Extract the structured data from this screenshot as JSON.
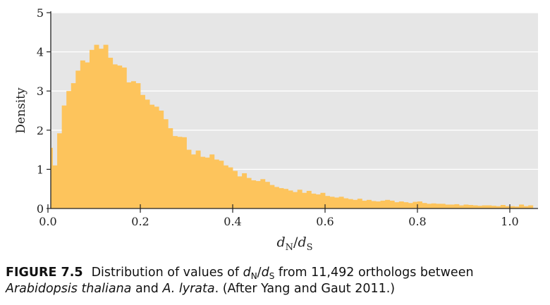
{
  "chart_data": {
    "type": "bar",
    "title": "",
    "xlabel": "dN/dS",
    "xlabel_parts": {
      "main_a": "d",
      "sub_a": "N",
      "slash": "/",
      "main_b": "d",
      "sub_b": "S"
    },
    "ylabel": "Density",
    "xlim": [
      0.0,
      1.05
    ],
    "ylim": [
      0,
      5
    ],
    "x_ticks": [
      "0.0",
      "0.2",
      "0.4",
      "0.6",
      "0.8",
      "1.0"
    ],
    "y_ticks": [
      "0",
      "1",
      "2",
      "3",
      "4",
      "5"
    ],
    "bin_width": 0.01,
    "bin_start": 0.0,
    "values": [
      1.55,
      1.1,
      1.92,
      2.63,
      3.0,
      3.2,
      3.52,
      3.78,
      3.73,
      4.05,
      4.18,
      4.08,
      4.18,
      3.85,
      3.68,
      3.65,
      3.6,
      3.22,
      3.25,
      3.2,
      2.9,
      2.78,
      2.65,
      2.6,
      2.5,
      2.28,
      2.05,
      1.85,
      1.83,
      1.82,
      1.5,
      1.38,
      1.48,
      1.32,
      1.3,
      1.38,
      1.25,
      1.22,
      1.1,
      1.05,
      0.96,
      0.82,
      0.9,
      0.78,
      0.72,
      0.7,
      0.75,
      0.68,
      0.6,
      0.55,
      0.52,
      0.5,
      0.46,
      0.42,
      0.48,
      0.4,
      0.45,
      0.38,
      0.36,
      0.4,
      0.32,
      0.3,
      0.28,
      0.3,
      0.26,
      0.24,
      0.22,
      0.25,
      0.2,
      0.22,
      0.19,
      0.18,
      0.2,
      0.22,
      0.2,
      0.16,
      0.18,
      0.16,
      0.14,
      0.17,
      0.18,
      0.14,
      0.12,
      0.13,
      0.12,
      0.12,
      0.1,
      0.1,
      0.11,
      0.08,
      0.1,
      0.09,
      0.08,
      0.07,
      0.08,
      0.08,
      0.07,
      0.06,
      0.09,
      0.06,
      0.06,
      0.05,
      0.1,
      0.06,
      0.08
    ],
    "grid": "horizontal",
    "colors": {
      "bars": "#FDC45C",
      "plot_background": "#E6E6E6",
      "gridlines": "#FFFFFF",
      "axis": "#222222"
    }
  },
  "caption": {
    "label": "FIGURE 7.5",
    "text_before": "Distribution of values of ",
    "var_a": "d",
    "sub_a": "N",
    "slash": "/",
    "var_b": "d",
    "sub_b": "S",
    "text_mid": " from 11,492 orthologs between",
    "species_a": "Arabidopsis thaliana",
    "and": " and ",
    "species_b": "A. lyrata",
    "text_end": ". (After Yang and Gaut 2011.)"
  }
}
